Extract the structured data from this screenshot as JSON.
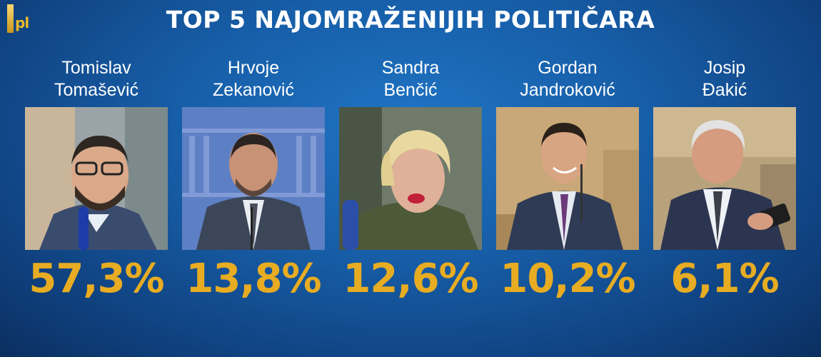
{
  "title": "TOP 5 NAJOMRAŽENIJIH POLITIČARA",
  "logo": {
    "text": "pl",
    "icon": "ipl-logo-icon"
  },
  "accent_color": "#e7ac22",
  "politicians": [
    {
      "first": "Tomislav",
      "last": "Tomašević",
      "percent": "57,3%"
    },
    {
      "first": "Hrvoje",
      "last": "Zekanović",
      "percent": "13,8%"
    },
    {
      "first": "Sandra",
      "last": "Benčić",
      "percent": "12,6%"
    },
    {
      "first": "Gordan",
      "last": "Jandroković",
      "percent": "10,2%"
    },
    {
      "first": "Josip",
      "last": "Đakić",
      "percent": "6,1%"
    }
  ]
}
